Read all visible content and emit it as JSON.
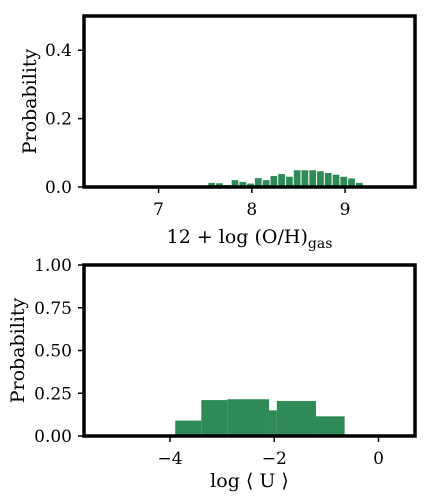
{
  "chart_data": [
    {
      "type": "bar",
      "title": "",
      "xlabel": {
        "main": "12 + log (O/H)",
        "subscript": "gas"
      },
      "ylabel": "Probability",
      "xlim": [
        6.2,
        9.75
      ],
      "ylim": [
        0,
        0.5
      ],
      "xticks": [
        {
          "value": 7,
          "label": "7"
        },
        {
          "value": 8,
          "label": "8"
        },
        {
          "value": 9,
          "label": "9"
        }
      ],
      "yticks": [
        {
          "value": 0.0,
          "label": "0.0"
        },
        {
          "value": 0.2,
          "label": "0.2"
        },
        {
          "value": 0.4,
          "label": "0.4"
        }
      ],
      "color": "#2e8b57",
      "bin_width": 0.083,
      "bin_starts": [
        7.45,
        7.533,
        7.617,
        7.7,
        7.783,
        7.867,
        7.95,
        8.033,
        8.117,
        8.2,
        8.283,
        8.367,
        8.45,
        8.533,
        8.617,
        8.7,
        8.783,
        8.867,
        8.95,
        9.033,
        9.117,
        9.2
      ],
      "values": [
        0.0,
        0.012,
        0.011,
        0.006,
        0.02,
        0.015,
        0.01,
        0.026,
        0.02,
        0.032,
        0.038,
        0.03,
        0.049,
        0.049,
        0.049,
        0.046,
        0.041,
        0.036,
        0.03,
        0.025,
        0.012,
        0.002
      ]
    },
    {
      "type": "bar",
      "title": "",
      "xlabel": {
        "main": "log ⟨ U ⟩"
      },
      "ylabel": "Probability",
      "xlim": [
        -5.65,
        0.7
      ],
      "ylim": [
        0,
        1.0
      ],
      "xticks": [
        {
          "value": -4,
          "label": "−4"
        },
        {
          "value": -2,
          "label": "−2"
        },
        {
          "value": 0,
          "label": "0"
        }
      ],
      "yticks": [
        {
          "value": 0.0,
          "label": "0.00"
        },
        {
          "value": 0.25,
          "label": "0.25"
        },
        {
          "value": 0.5,
          "label": "0.50"
        },
        {
          "value": 0.75,
          "label": "0.75"
        },
        {
          "value": 1.0,
          "label": "1.00"
        }
      ],
      "color": "#2e8b57",
      "bins": [
        {
          "x0": -3.9,
          "x1": -3.4,
          "value": 0.09
        },
        {
          "x0": -3.4,
          "x1": -2.9,
          "value": 0.21
        },
        {
          "x0": -2.9,
          "x1": -2.1,
          "value": 0.215
        },
        {
          "x0": -2.1,
          "x1": -1.95,
          "value": 0.15
        },
        {
          "x0": -1.95,
          "x1": -1.2,
          "value": 0.205
        },
        {
          "x0": -1.2,
          "x1": -0.65,
          "value": 0.115
        }
      ]
    }
  ]
}
